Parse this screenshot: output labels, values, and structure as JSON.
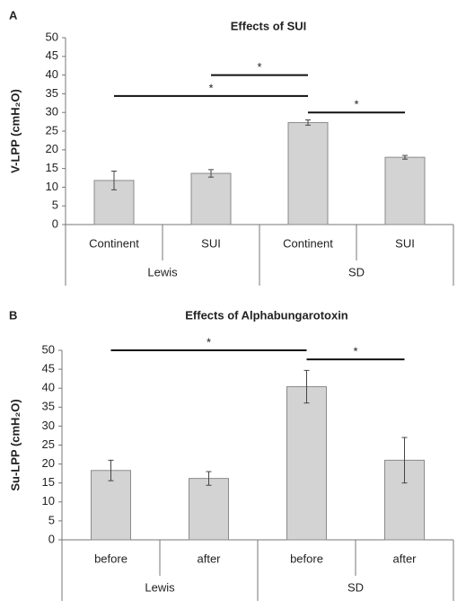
{
  "chart_data": [
    {
      "type": "bar",
      "panel_label": "A",
      "title": "Effects of SUI",
      "y_label": "V-LPP (cmH₂O)",
      "categories": [
        "Continent",
        "SUI",
        "Continent",
        "SUI"
      ],
      "groups": [
        "Lewis",
        "SD"
      ],
      "values": [
        11.8,
        13.7,
        27.3,
        18
      ],
      "errors": [
        2.5,
        1,
        0.7,
        0.5
      ],
      "color": "#d3d3d3",
      "ylim": [
        0,
        50
      ],
      "yticks": [
        0,
        5,
        10,
        15,
        20,
        25,
        30,
        35,
        40,
        45,
        50
      ],
      "annotations": [
        {
          "text": "*",
          "y": 40,
          "from": 1,
          "to": 2
        },
        {
          "text": "*",
          "y": 34.4,
          "from": 0,
          "to": 2
        },
        {
          "text": "*",
          "y": 30,
          "from": 2,
          "to": 3
        }
      ]
    },
    {
      "type": "bar",
      "panel_label": "B",
      "title": "Effects of Alphabungarotoxin",
      "y_label": "Su-LPP (cmH₂O)",
      "categories": [
        "before",
        "after",
        "before",
        "after"
      ],
      "groups": [
        "Lewis",
        "SD"
      ],
      "values": [
        18.3,
        16.2,
        40.4,
        21
      ],
      "errors": [
        2.7,
        1.8,
        4.3,
        6
      ],
      "color": "#d3d3d3",
      "ylim": [
        0,
        50
      ],
      "yticks": [
        0,
        5,
        10,
        15,
        20,
        25,
        30,
        35,
        40,
        45,
        50
      ],
      "annotations": [
        {
          "text": "*",
          "y": 50,
          "from": 0,
          "to": 2
        },
        {
          "text": "*",
          "y": 47.6,
          "from": 2,
          "to": 3
        }
      ]
    }
  ]
}
